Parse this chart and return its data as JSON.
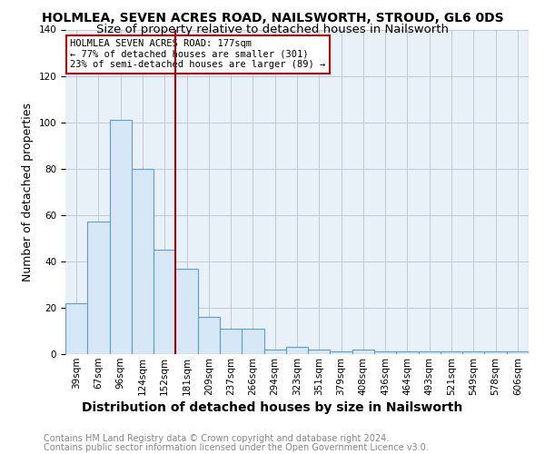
{
  "title": "HOLMLEA, SEVEN ACRES ROAD, NAILSWORTH, STROUD, GL6 0DS",
  "subtitle": "Size of property relative to detached houses in Nailsworth",
  "xlabel": "Distribution of detached houses by size in Nailsworth",
  "ylabel": "Number of detached properties",
  "categories": [
    "39sqm",
    "67sqm",
    "96sqm",
    "124sqm",
    "152sqm",
    "181sqm",
    "209sqm",
    "237sqm",
    "266sqm",
    "294sqm",
    "323sqm",
    "351sqm",
    "379sqm",
    "408sqm",
    "436sqm",
    "464sqm",
    "493sqm",
    "521sqm",
    "549sqm",
    "578sqm",
    "606sqm"
  ],
  "values": [
    22,
    57,
    101,
    80,
    45,
    37,
    16,
    11,
    11,
    2,
    3,
    2,
    1,
    2,
    1,
    1,
    1,
    1,
    1,
    1,
    1
  ],
  "bar_color": "#d6e8f5",
  "bar_edge_color": "#5a9fd4",
  "vline_index": 5,
  "vline_color": "#aa0000",
  "annotation_text": "HOLMLEA SEVEN ACRES ROAD: 177sqm\n← 77% of detached houses are smaller (301)\n23% of semi-detached houses are larger (89) →",
  "annotation_box_color": "#ffffff",
  "annotation_border_color": "#cc0000",
  "ylim": [
    0,
    140
  ],
  "plot_bg_color": "#e8f0f8",
  "footer1": "Contains HM Land Registry data © Crown copyright and database right 2024.",
  "footer2": "Contains public sector information licensed under the Open Government Licence v3.0.",
  "bg_color": "#ffffff",
  "grid_color": "#c0c8d8",
  "title_fontsize": 10,
  "subtitle_fontsize": 9.5,
  "tick_fontsize": 7.5,
  "ylabel_fontsize": 9,
  "xlabel_fontsize": 10,
  "footer_fontsize": 7,
  "footer_color": "#888888"
}
